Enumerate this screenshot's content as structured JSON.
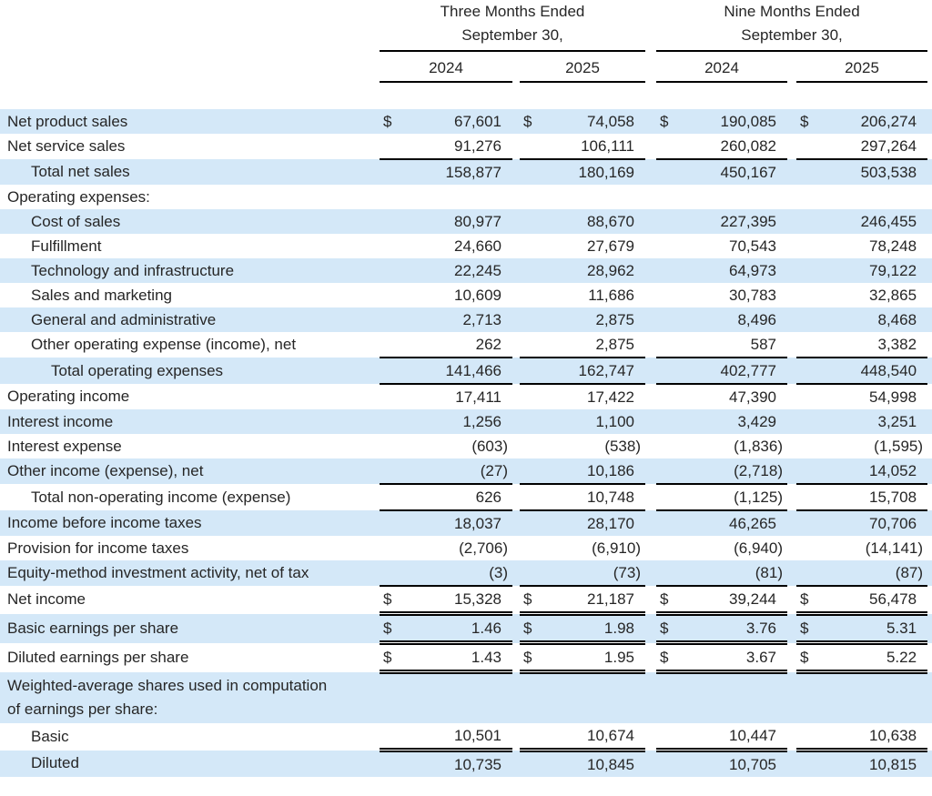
{
  "currency_symbol": "$",
  "colors": {
    "row_highlight": "#d4e8f8",
    "rule": "#000000",
    "text": "#262626"
  },
  "header": {
    "groups": [
      {
        "line1": "Three Months Ended",
        "line2": "September 30,",
        "years": [
          "2024",
          "2025"
        ]
      },
      {
        "line1": "Nine Months Ended",
        "line2": "September 30,",
        "years": [
          "2024",
          "2025"
        ]
      }
    ]
  },
  "rows": [
    {
      "label_lines": [
        "Net product sales"
      ],
      "indent": 0,
      "shaded": true,
      "currency": true,
      "rule": "",
      "values": [
        "67,601",
        "74,058",
        "190,085",
        "206,274"
      ]
    },
    {
      "label_lines": [
        "Net service sales"
      ],
      "indent": 0,
      "shaded": false,
      "currency": false,
      "rule": "single",
      "values": [
        "91,276",
        "106,111",
        "260,082",
        "297,264"
      ]
    },
    {
      "label_lines": [
        "Total net sales"
      ],
      "indent": 1,
      "shaded": true,
      "currency": false,
      "rule": "",
      "values": [
        "158,877",
        "180,169",
        "450,167",
        "503,538"
      ]
    },
    {
      "label_lines": [
        "Operating expenses:"
      ],
      "indent": 0,
      "shaded": false,
      "currency": false,
      "rule": "",
      "values": [
        "",
        "",
        "",
        ""
      ]
    },
    {
      "label_lines": [
        "Cost of sales"
      ],
      "indent": 1,
      "shaded": true,
      "currency": false,
      "rule": "",
      "values": [
        "80,977",
        "88,670",
        "227,395",
        "246,455"
      ]
    },
    {
      "label_lines": [
        "Fulfillment"
      ],
      "indent": 1,
      "shaded": false,
      "currency": false,
      "rule": "",
      "values": [
        "24,660",
        "27,679",
        "70,543",
        "78,248"
      ]
    },
    {
      "label_lines": [
        "Technology and infrastructure"
      ],
      "indent": 1,
      "shaded": true,
      "currency": false,
      "rule": "",
      "values": [
        "22,245",
        "28,962",
        "64,973",
        "79,122"
      ]
    },
    {
      "label_lines": [
        "Sales and marketing"
      ],
      "indent": 1,
      "shaded": false,
      "currency": false,
      "rule": "",
      "values": [
        "10,609",
        "11,686",
        "30,783",
        "32,865"
      ]
    },
    {
      "label_lines": [
        "General and administrative"
      ],
      "indent": 1,
      "shaded": true,
      "currency": false,
      "rule": "",
      "values": [
        "2,713",
        "2,875",
        "8,496",
        "8,468"
      ]
    },
    {
      "label_lines": [
        "Other operating expense (income), net"
      ],
      "indent": 1,
      "shaded": false,
      "currency": false,
      "rule": "single",
      "values": [
        "262",
        "2,875",
        "587",
        "3,382"
      ]
    },
    {
      "label_lines": [
        "Total operating expenses"
      ],
      "indent": 2,
      "shaded": true,
      "currency": false,
      "rule": "single",
      "values": [
        "141,466",
        "162,747",
        "402,777",
        "448,540"
      ]
    },
    {
      "label_lines": [
        "Operating income"
      ],
      "indent": 0,
      "shaded": false,
      "currency": false,
      "rule": "",
      "values": [
        "17,411",
        "17,422",
        "47,390",
        "54,998"
      ]
    },
    {
      "label_lines": [
        "Interest income"
      ],
      "indent": 0,
      "shaded": true,
      "currency": false,
      "rule": "",
      "values": [
        "1,256",
        "1,100",
        "3,429",
        "3,251"
      ]
    },
    {
      "label_lines": [
        "Interest expense"
      ],
      "indent": 0,
      "shaded": false,
      "currency": false,
      "rule": "",
      "values": [
        "(603)",
        "(538)",
        "(1,836)",
        "(1,595)"
      ]
    },
    {
      "label_lines": [
        "Other income (expense), net"
      ],
      "indent": 0,
      "shaded": true,
      "currency": false,
      "rule": "single",
      "values": [
        "(27)",
        "10,186",
        "(2,718)",
        "14,052"
      ]
    },
    {
      "label_lines": [
        "Total non-operating income (expense)"
      ],
      "indent": 1,
      "shaded": false,
      "currency": false,
      "rule": "single",
      "values": [
        "626",
        "10,748",
        "(1,125)",
        "15,708"
      ]
    },
    {
      "label_lines": [
        "Income before income taxes"
      ],
      "indent": 0,
      "shaded": true,
      "currency": false,
      "rule": "",
      "values": [
        "18,037",
        "28,170",
        "46,265",
        "70,706"
      ]
    },
    {
      "label_lines": [
        "Provision for income taxes"
      ],
      "indent": 0,
      "shaded": false,
      "currency": false,
      "rule": "",
      "values": [
        "(2,706)",
        "(6,910)",
        "(6,940)",
        "(14,141)"
      ]
    },
    {
      "label_lines": [
        "Equity-method investment activity, net of tax"
      ],
      "indent": 0,
      "shaded": true,
      "currency": false,
      "rule": "single",
      "values": [
        "(3)",
        "(73)",
        "(81)",
        "(87)"
      ]
    },
    {
      "label_lines": [
        "Net income"
      ],
      "indent": 0,
      "shaded": false,
      "currency": true,
      "rule": "double",
      "values": [
        "15,328",
        "21,187",
        "39,244",
        "56,478"
      ]
    },
    {
      "label_lines": [
        "Basic earnings per share"
      ],
      "indent": 0,
      "shaded": true,
      "currency": true,
      "rule": "double",
      "values": [
        "1.46",
        "1.98",
        "3.76",
        "5.31"
      ]
    },
    {
      "label_lines": [
        "Diluted earnings per share"
      ],
      "indent": 0,
      "shaded": false,
      "currency": true,
      "rule": "double",
      "values": [
        "1.43",
        "1.95",
        "3.67",
        "5.22"
      ]
    },
    {
      "label_lines": [
        "Weighted-average shares used in computation",
        "of earnings per share:"
      ],
      "indent": 0,
      "shaded": true,
      "currency": false,
      "rule": "",
      "values": [
        "",
        "",
        "",
        ""
      ]
    },
    {
      "label_lines": [
        "Basic"
      ],
      "indent": 1,
      "shaded": false,
      "currency": false,
      "rule": "double",
      "values": [
        "10,501",
        "10,674",
        "10,447",
        "10,638"
      ]
    },
    {
      "label_lines": [
        "Diluted"
      ],
      "indent": 1,
      "shaded": true,
      "currency": false,
      "rule": "",
      "values": [
        "10,735",
        "10,845",
        "10,705",
        "10,815"
      ]
    }
  ]
}
